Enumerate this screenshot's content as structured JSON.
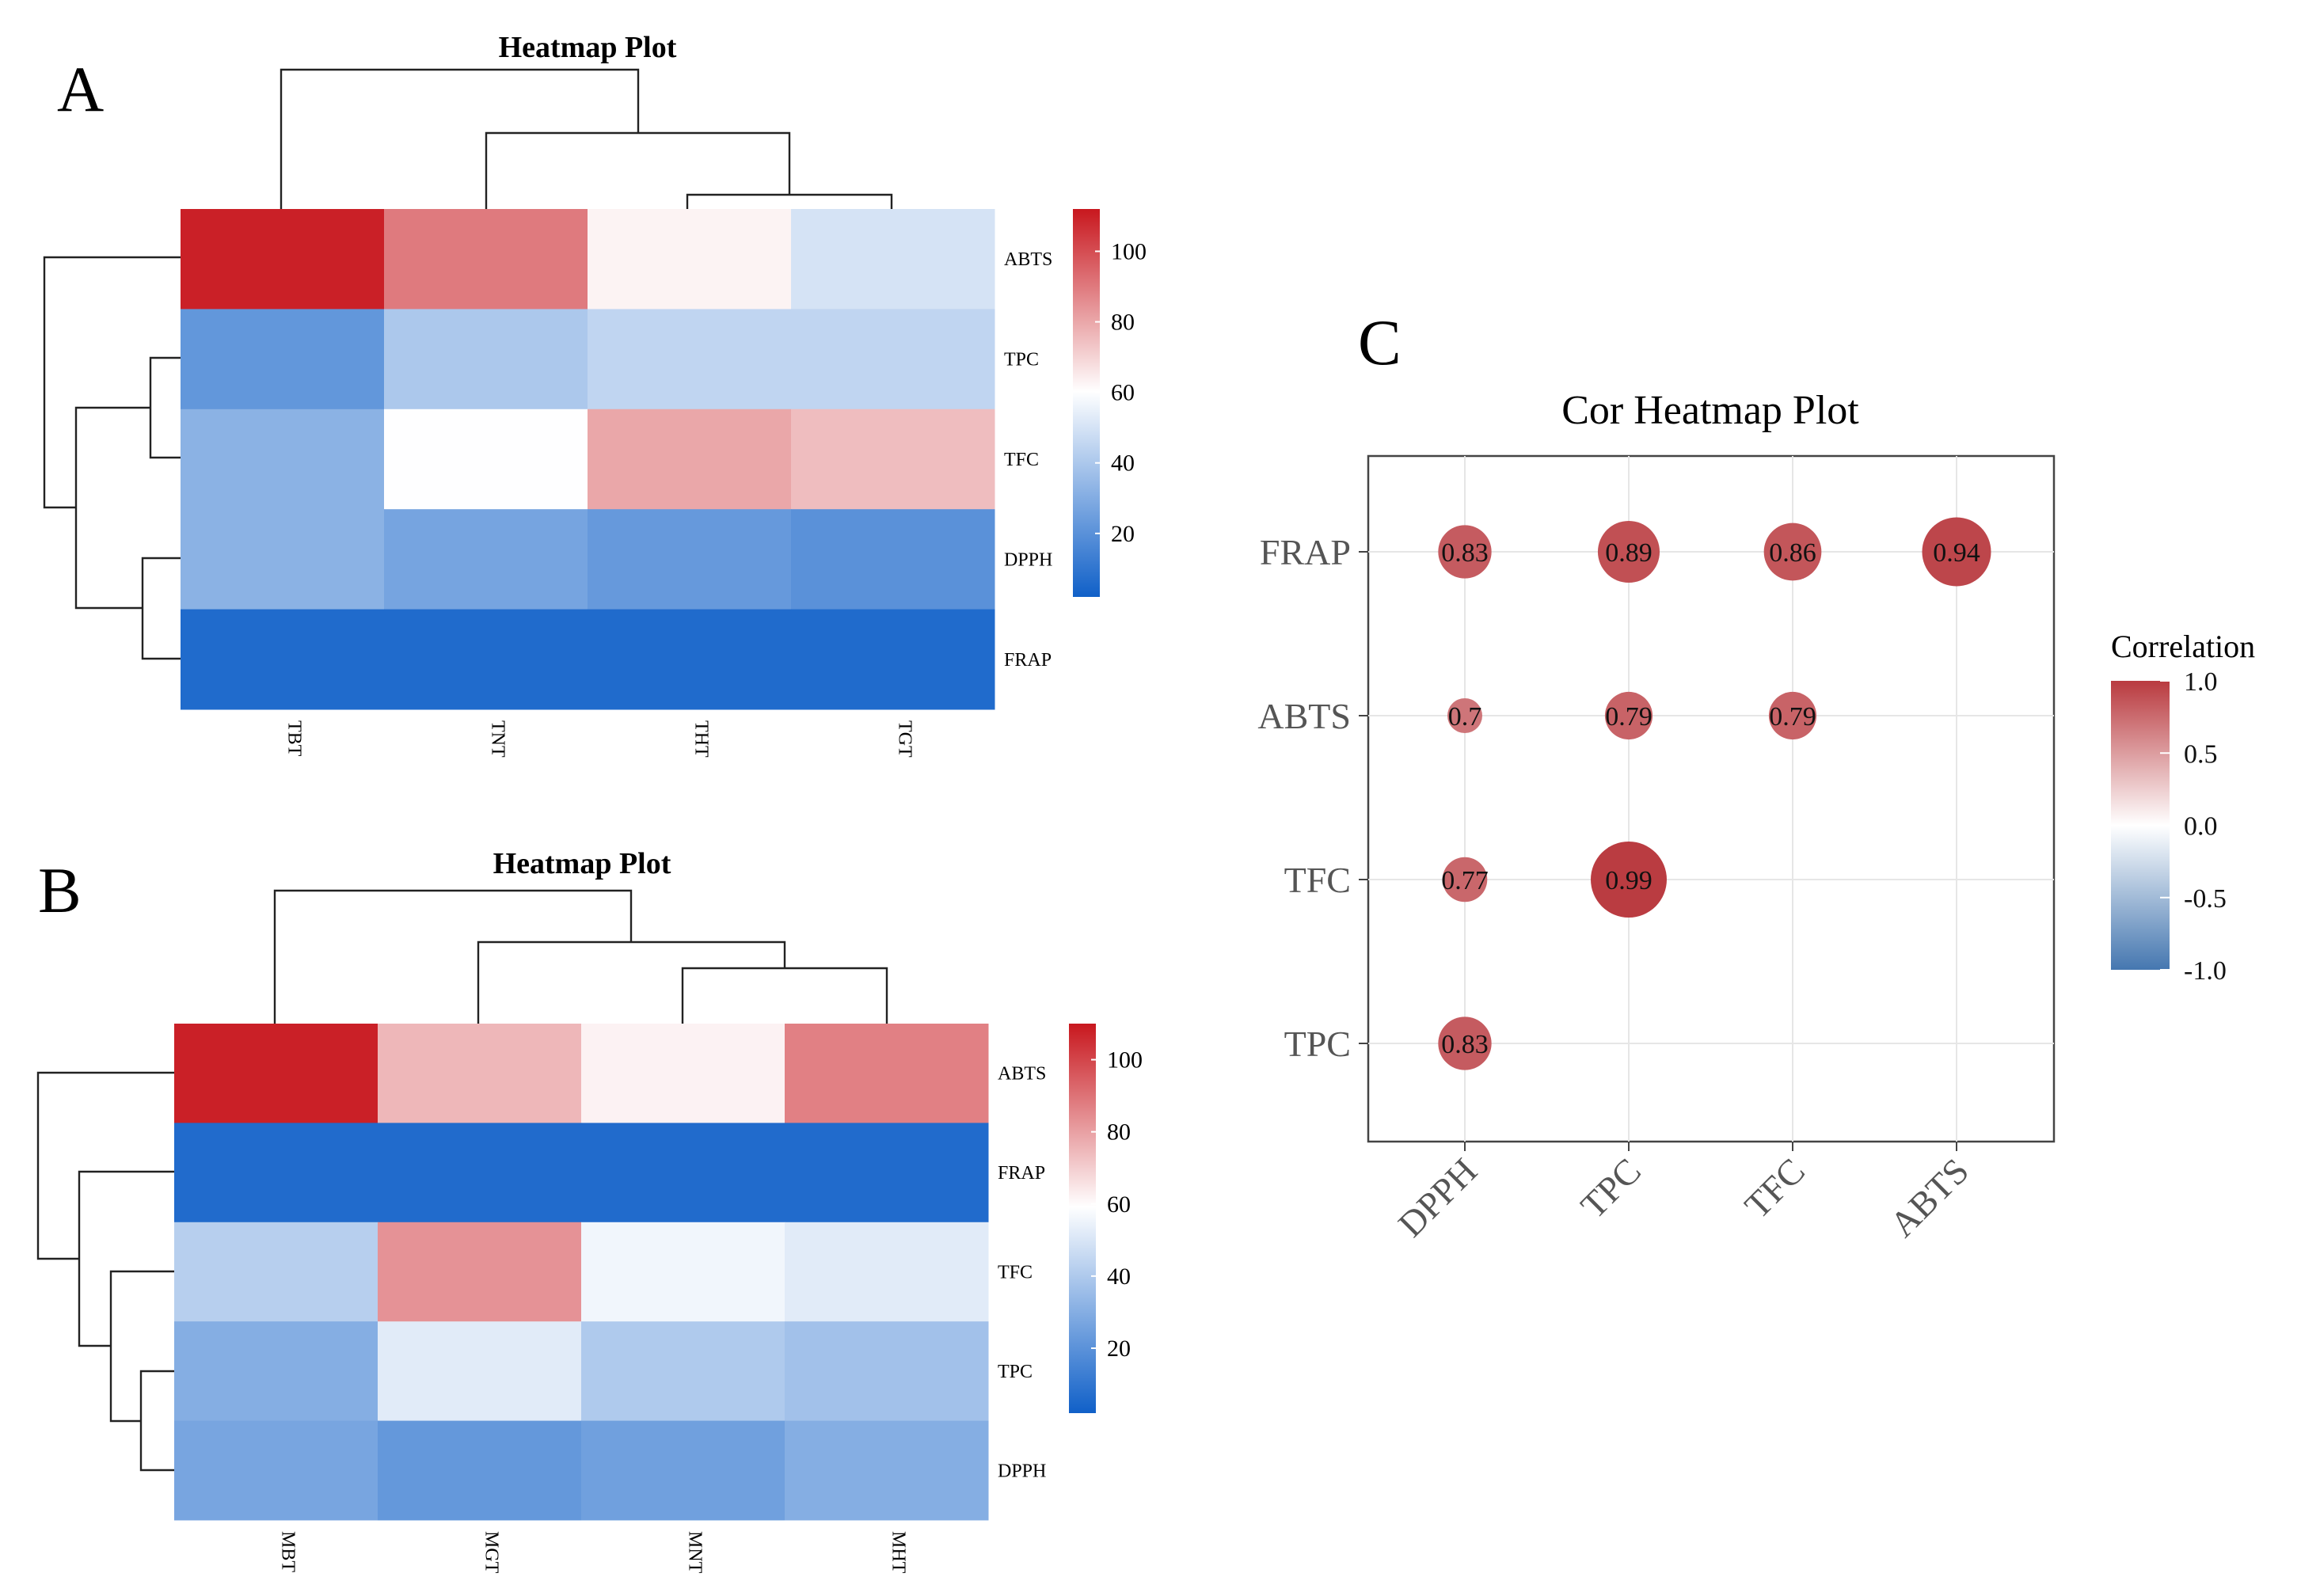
{
  "panels": {
    "a": {
      "letter": "A"
    },
    "b": {
      "letter": "B"
    },
    "c": {
      "letter": "C"
    }
  },
  "chart_data": [
    {
      "id": "A",
      "type": "heatmap",
      "title": "Heatmap Plot",
      "columns": [
        "TBT",
        "TNT",
        "THT",
        "TGT"
      ],
      "rows": [
        "ABTS",
        "TPC",
        "TFC",
        "DPPH",
        "FRAP"
      ],
      "values": [
        [
          110,
          90,
          63,
          50
        ],
        [
          22,
          40,
          45,
          45
        ],
        [
          32,
          60,
          80,
          75
        ],
        [
          32,
          27,
          23,
          20
        ],
        [
          6,
          6,
          6,
          6
        ]
      ],
      "colorbar": {
        "ticks": [
          100,
          80,
          60,
          40,
          20
        ],
        "range": [
          2,
          112
        ]
      },
      "col_dendrogram": "((TBT),(TNT,(THT,TGT)))",
      "row_dendrogram": "(ABTS,((TPC,TFC),(DPPH,FRAP)))"
    },
    {
      "id": "B",
      "type": "heatmap",
      "title": "Heatmap Plot",
      "columns": [
        "MBT",
        "MGT",
        "MNT",
        "MHT"
      ],
      "rows": [
        "ABTS",
        "FRAP",
        "TFC",
        "TPC",
        "DPPH"
      ],
      "values": [
        [
          108,
          75,
          62,
          87
        ],
        [
          6,
          6,
          6,
          6
        ],
        [
          42,
          83,
          56,
          52
        ],
        [
          30,
          52,
          40,
          37
        ],
        [
          27,
          22,
          25,
          30
        ]
      ],
      "colorbar": {
        "ticks": [
          100,
          80,
          60,
          40,
          20
        ],
        "range": [
          2,
          110
        ]
      },
      "col_dendrogram": "((MBT),(MGT,(MNT,MHT)))",
      "row_dendrogram": "(ABTS,(FRAP,(TFC,(TPC,DPPH))))"
    },
    {
      "id": "C",
      "type": "scatter",
      "title": "Cor Heatmap Plot",
      "x_categories": [
        "DPPH",
        "TPC",
        "TFC",
        "ABTS"
      ],
      "y_categories": [
        "FRAP",
        "ABTS",
        "TFC",
        "TPC"
      ],
      "points": [
        {
          "x": "DPPH",
          "y": "FRAP",
          "value": 0.83,
          "label": "0.83"
        },
        {
          "x": "TPC",
          "y": "FRAP",
          "value": 0.89,
          "label": "0.89"
        },
        {
          "x": "TFC",
          "y": "FRAP",
          "value": 0.86,
          "label": "0.86"
        },
        {
          "x": "ABTS",
          "y": "FRAP",
          "value": 0.94,
          "label": "0.94"
        },
        {
          "x": "DPPH",
          "y": "ABTS",
          "value": 0.7,
          "label": "0.7"
        },
        {
          "x": "TPC",
          "y": "ABTS",
          "value": 0.79,
          "label": "0.79"
        },
        {
          "x": "TFC",
          "y": "ABTS",
          "value": 0.79,
          "label": "0.79"
        },
        {
          "x": "DPPH",
          "y": "TFC",
          "value": 0.77,
          "label": "0.77"
        },
        {
          "x": "TPC",
          "y": "TFC",
          "value": 0.99,
          "label": "0.99"
        },
        {
          "x": "DPPH",
          "y": "TPC",
          "value": 0.83,
          "label": "0.83"
        }
      ],
      "legend": {
        "title": "Correlation",
        "ticks": [
          "1.0",
          "0.5",
          "0.0",
          "-0.5",
          "-1.0"
        ],
        "range": [
          -1,
          1
        ]
      }
    }
  ]
}
